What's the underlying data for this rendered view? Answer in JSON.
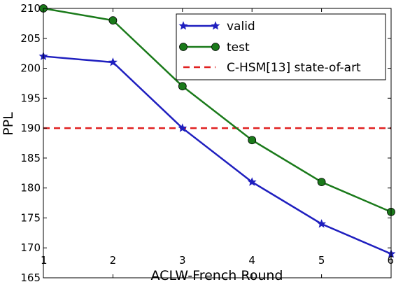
{
  "chart_data": {
    "type": "line",
    "title": "",
    "xlabel": "ACLW-French Round",
    "ylabel": "PPL",
    "x": [
      1,
      2,
      3,
      4,
      5,
      6
    ],
    "xlim": [
      1,
      6
    ],
    "ylim": [
      165,
      210
    ],
    "xticks": [
      "1",
      "2",
      "3",
      "4",
      "5",
      "6"
    ],
    "yticks": [
      "165",
      "170",
      "175",
      "180",
      "185",
      "190",
      "195",
      "200",
      "205",
      "210"
    ],
    "grid": false,
    "legend_position": "top-right",
    "series": [
      {
        "name": "valid",
        "values": [
          202,
          201,
          190,
          181,
          174,
          169
        ],
        "color": "#1f1fbf",
        "marker": "star",
        "line_style": "solid"
      },
      {
        "name": "test",
        "values": [
          210,
          208,
          197,
          188,
          181,
          176
        ],
        "color": "#1a7a1a",
        "marker": "circle",
        "line_style": "solid"
      }
    ],
    "reference_lines": [
      {
        "name": "C-HSM[13] state-of-art",
        "y": 190,
        "color": "#e02020",
        "line_style": "dashed"
      }
    ]
  }
}
